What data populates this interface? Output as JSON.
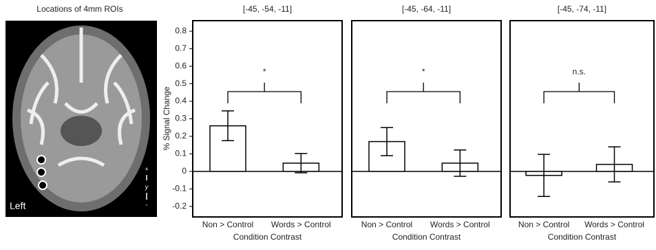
{
  "image": {
    "title": "Locations of 4mm ROIs",
    "side_label": "Left",
    "plus": "+",
    "axis_label": "y",
    "minus": "-"
  },
  "chart_data": [
    {
      "type": "bar",
      "title": "[-45, -54, -11]",
      "y_label": "% Signal Change",
      "x_label": "Condition Contrast",
      "categories": [
        "Non > Control",
        "Words > Control"
      ],
      "values": [
        0.26,
        0.047
      ],
      "errors": [
        0.085,
        0.055
      ],
      "color": "#ffffff",
      "annotation": "*",
      "ylim": [
        -0.26,
        0.86
      ],
      "yticks": [
        0.8,
        0.7,
        0.6,
        0.5,
        0.4,
        0.3,
        0.2,
        0.1,
        0,
        -0.1,
        -0.2
      ]
    },
    {
      "type": "bar",
      "title": "[-45, -64, -11]",
      "x_label": "Condition Contrast",
      "categories": [
        "Non > Control",
        "Words > Control"
      ],
      "values": [
        0.17,
        0.047
      ],
      "errors": [
        0.08,
        0.075
      ],
      "color": "#ffffff",
      "annotation": "*",
      "ylim": [
        -0.26,
        0.86
      ]
    },
    {
      "type": "bar",
      "title": "[-45, -74, -11]",
      "x_label": "Condition Contrast",
      "categories": [
        "Non > Control",
        "Words > Control"
      ],
      "values": [
        -0.023,
        0.04
      ],
      "errors": [
        0.12,
        0.1
      ],
      "color": "#ffffff",
      "annotation": "n.s.",
      "ylim": [
        -0.26,
        0.86
      ]
    }
  ]
}
